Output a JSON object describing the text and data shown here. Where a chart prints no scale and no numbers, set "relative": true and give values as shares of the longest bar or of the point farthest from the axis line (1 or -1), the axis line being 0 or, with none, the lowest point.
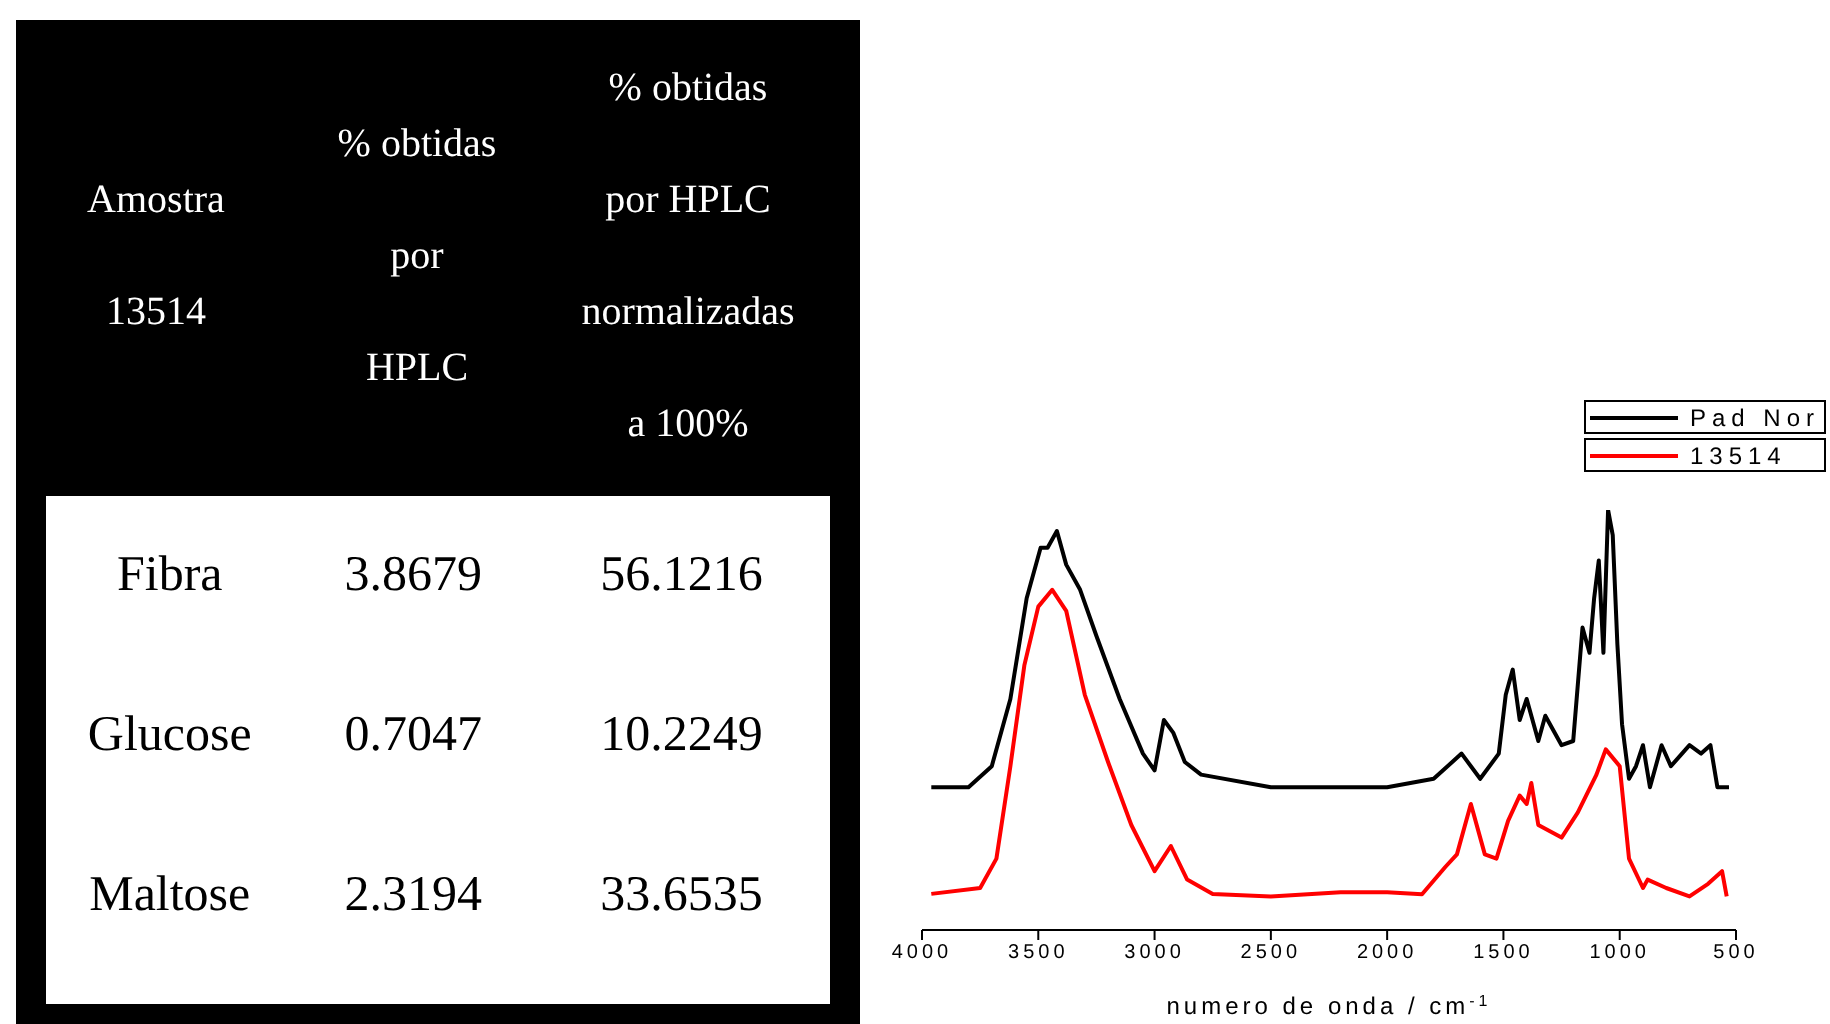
{
  "chart_data": [
    {
      "type": "other",
      "title": "Amostra 13514",
      "categories": [
        "Fibra",
        "Glucose",
        "Maltose"
      ],
      "data_labels": true,
      "series": [
        {
          "name": "% obtidas por HPLC",
          "color": "#ffffff",
          "values": [
            3.8679,
            0.7047,
            2.3194
          ]
        },
        {
          "name": "% obtidas por HPLC normalizadas a 100%",
          "color": "#ffffff",
          "values": [
            56.1216,
            10.2249,
            33.6535
          ]
        }
      ]
    },
    {
      "type": "line",
      "relative": true,
      "xlabel": "numero de onda / cm$^{-1}$",
      "xlim": [
        4000,
        500
      ],
      "xticks": [
        4000,
        3500,
        3000,
        2500,
        2000,
        1500,
        1000,
        500
      ],
      "legend": "top right",
      "grid": false,
      "marker": "none",
      "line_style": "solid",
      "series": [
        {
          "name": "Pad Nor",
          "color": "#000000",
          "x": [
            3960,
            3800,
            3700,
            3620,
            3550,
            3490,
            3460,
            3420,
            3380,
            3320,
            3250,
            3150,
            3050,
            3000,
            2960,
            2920,
            2870,
            2800,
            2500,
            2000,
            1800,
            1680,
            1600,
            1520,
            1490,
            1460,
            1430,
            1400,
            1350,
            1320,
            1250,
            1200,
            1160,
            1130,
            1110,
            1090,
            1070,
            1050,
            1030,
            1010,
            990,
            960,
            930,
            900,
            870,
            820,
            780,
            700,
            650,
            610,
            580,
            530
          ],
          "values": [
            0.34,
            0.34,
            0.39,
            0.55,
            0.79,
            0.91,
            0.91,
            0.95,
            0.87,
            0.81,
            0.7,
            0.55,
            0.42,
            0.38,
            0.5,
            0.47,
            0.4,
            0.37,
            0.34,
            0.34,
            0.36,
            0.42,
            0.36,
            0.42,
            0.56,
            0.62,
            0.5,
            0.55,
            0.45,
            0.51,
            0.44,
            0.45,
            0.72,
            0.66,
            0.79,
            0.88,
            0.66,
            1,
            0.94,
            0.68,
            0.49,
            0.36,
            0.39,
            0.44,
            0.34,
            0.44,
            0.39,
            0.44,
            0.42,
            0.44,
            0.34,
            0.34
          ]
        },
        {
          "name": "13514",
          "color": "#ff0000",
          "x": [
            3960,
            3750,
            3680,
            3620,
            3560,
            3500,
            3440,
            3380,
            3300,
            3200,
            3100,
            3000,
            2930,
            2860,
            2750,
            2500,
            2200,
            2000,
            1850,
            1750,
            1700,
            1640,
            1580,
            1530,
            1480,
            1430,
            1400,
            1380,
            1350,
            1250,
            1180,
            1100,
            1060,
            1000,
            960,
            900,
            880,
            800,
            700,
            620,
            560,
            540
          ],
          "values": [
            0.086,
            0.1,
            0.17,
            0.39,
            0.63,
            0.77,
            0.81,
            0.76,
            0.56,
            0.4,
            0.25,
            0.14,
            0.2,
            0.12,
            0.086,
            0.08,
            0.09,
            0.09,
            0.085,
            0.15,
            0.18,
            0.3,
            0.18,
            0.17,
            0.26,
            0.32,
            0.3,
            0.35,
            0.25,
            0.22,
            0.28,
            0.37,
            0.43,
            0.39,
            0.17,
            0.1,
            0.12,
            0.1,
            0.08,
            0.11,
            0.14,
            0.08
          ]
        }
      ]
    }
  ]
}
